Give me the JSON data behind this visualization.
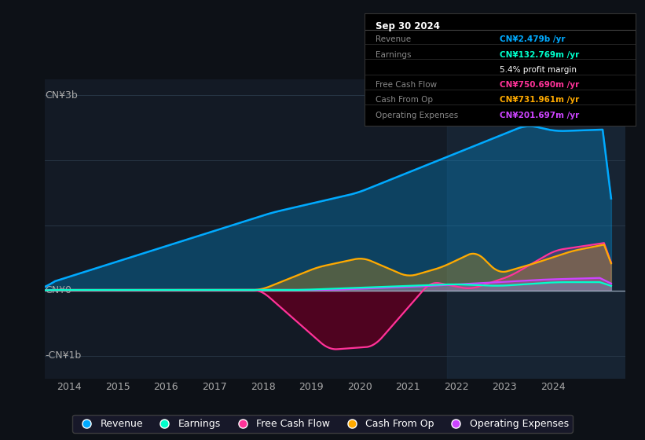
{
  "bg_color": "#0d1117",
  "plot_bg": "#131a25",
  "y_label_top": "CN¥3b",
  "y_label_zero": "CN¥0",
  "y_label_bot": "-CN¥1b",
  "x_ticks": [
    2014,
    2015,
    2016,
    2017,
    2018,
    2019,
    2020,
    2021,
    2022,
    2023,
    2024
  ],
  "colors": {
    "revenue": "#00aaff",
    "earnings": "#00ffcc",
    "free_cash_flow": "#ff3399",
    "cash_from_op": "#ffaa00",
    "operating_expenses": "#cc44ff"
  },
  "info_box_title": "Sep 30 2024",
  "info_rows": [
    {
      "label": "Revenue",
      "value": "CN¥2.479b /yr",
      "color": "#00aaff"
    },
    {
      "label": "Earnings",
      "value": "CN¥132.769m /yr",
      "color": "#00ffcc"
    },
    {
      "label": "",
      "value": "5.4% profit margin",
      "color": "#ffffff"
    },
    {
      "label": "Free Cash Flow",
      "value": "CN¥750.690m /yr",
      "color": "#ff3399"
    },
    {
      "label": "Cash From Op",
      "value": "CN¥731.961m /yr",
      "color": "#ffaa00"
    },
    {
      "label": "Operating Expenses",
      "value": "CN¥201.697m /yr",
      "color": "#cc44ff"
    }
  ],
  "legend": [
    {
      "label": "Revenue",
      "color": "#00aaff"
    },
    {
      "label": "Earnings",
      "color": "#00ffcc"
    },
    {
      "label": "Free Cash Flow",
      "color": "#ff3399"
    },
    {
      "label": "Cash From Op",
      "color": "#ffaa00"
    },
    {
      "label": "Operating Expenses",
      "color": "#cc44ff"
    }
  ]
}
